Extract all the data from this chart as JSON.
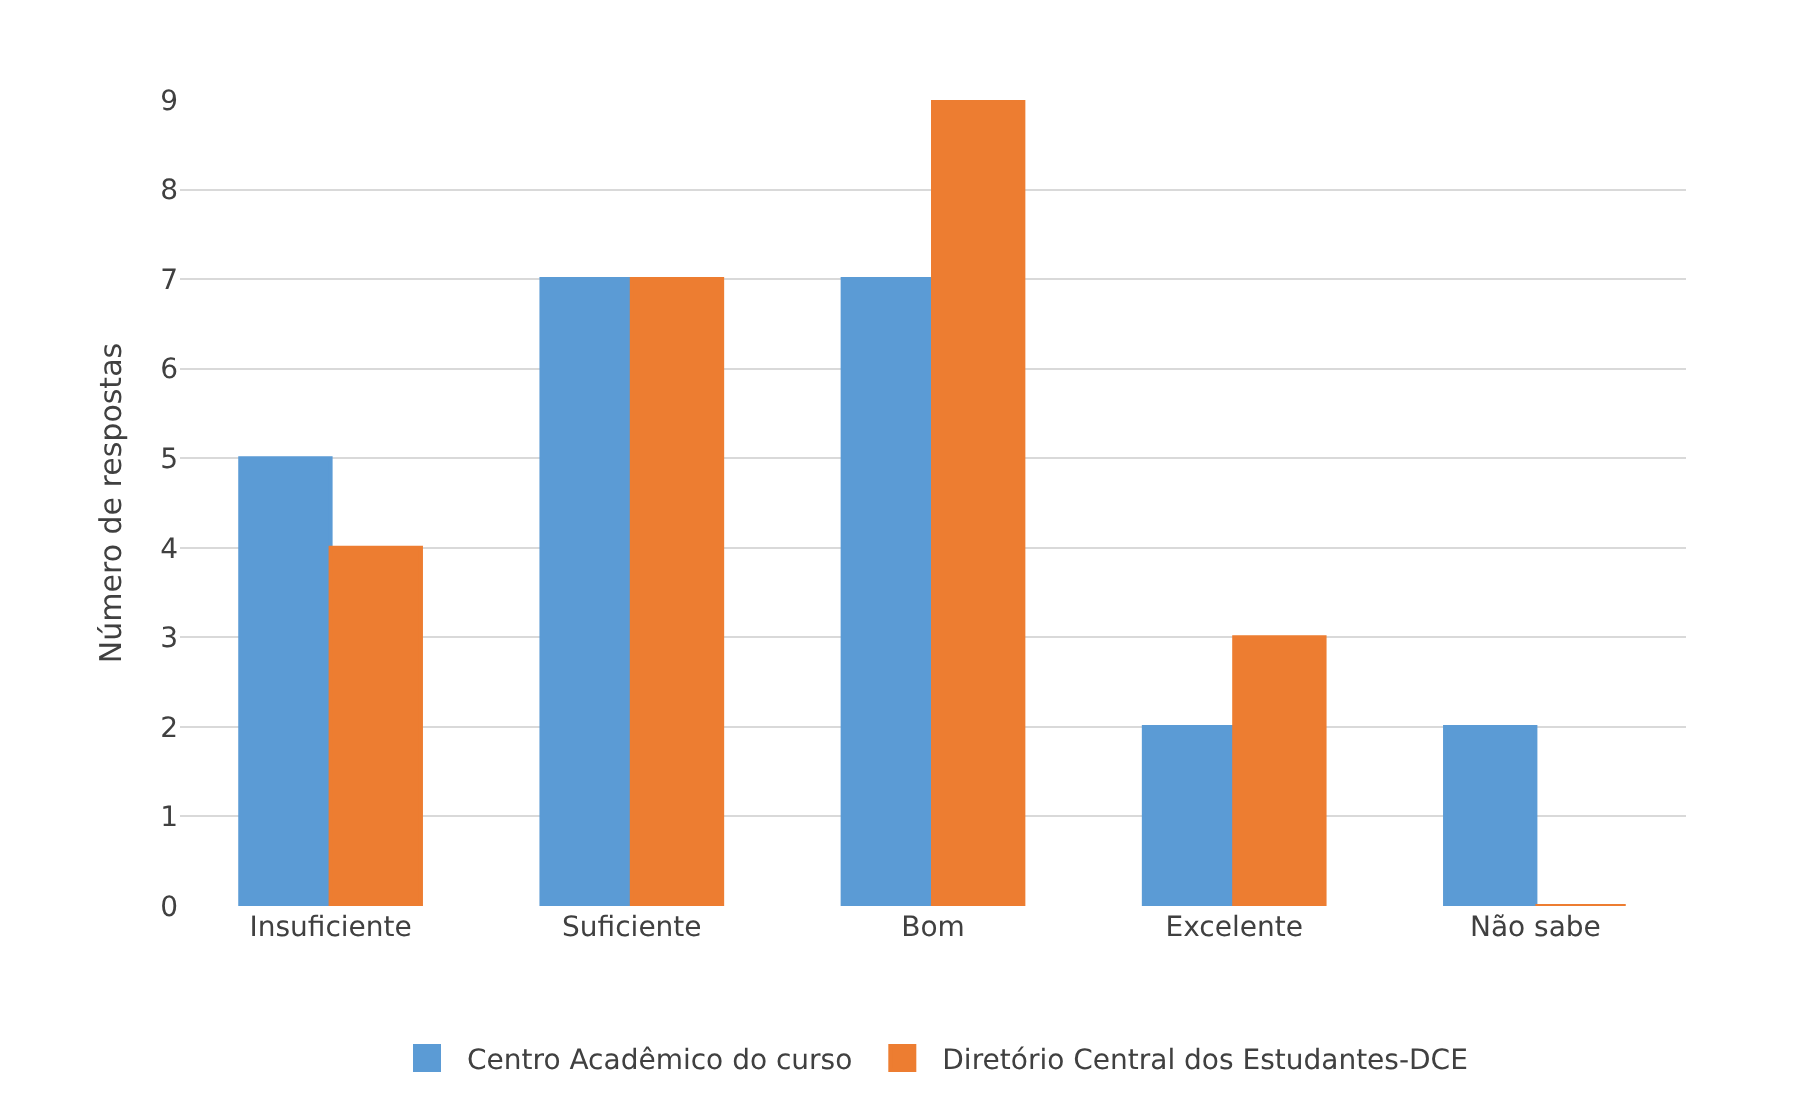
{
  "chart_data": {
    "type": "bar",
    "ylabel": "Número de respostas",
    "categories": [
      "Insuficiente",
      "Suficiente",
      "Bom",
      "Excelente",
      "Não sabe"
    ],
    "series": [
      {
        "name": "Centro Acadêmico do curso",
        "color": "#5b9bd5",
        "values": [
          5,
          7,
          7,
          2,
          2
        ]
      },
      {
        "name": "Diretório Central dos Estudantes-DCE",
        "color": "#ed7d31",
        "values": [
          4,
          7,
          9,
          3,
          0
        ]
      }
    ],
    "ylim": [
      0,
      9
    ],
    "yticks": [
      0,
      1,
      2,
      3,
      4,
      5,
      6,
      7,
      8,
      9
    ],
    "grid": "y",
    "legend": "bottom"
  }
}
